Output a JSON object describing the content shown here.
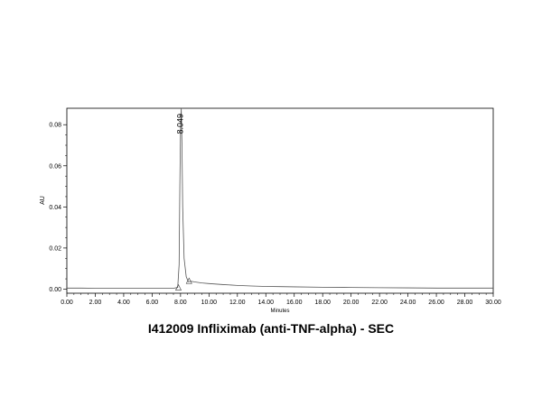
{
  "caption": "I412009 Infliximab (anti-TNF-alpha) - SEC",
  "chart_data": {
    "type": "line",
    "title": "",
    "xlabel": "Minutes",
    "ylabel": "AU",
    "xlim": [
      0,
      30
    ],
    "ylim": [
      -0.002,
      0.088
    ],
    "grid": false,
    "x_ticks": [
      0,
      2,
      4,
      6,
      8,
      10,
      12,
      14,
      16,
      18,
      20,
      22,
      24,
      26,
      28,
      30
    ],
    "x_tick_labels": [
      "0.00",
      "2.00",
      "4.00",
      "6.00",
      "8.00",
      "10.00",
      "12.00",
      "14.00",
      "16.00",
      "18.00",
      "20.00",
      "22.00",
      "24.00",
      "26.00",
      "28.00",
      "30.00"
    ],
    "y_ticks": [
      0,
      0.02,
      0.04,
      0.06,
      0.08
    ],
    "y_tick_labels": [
      "0.00",
      "0.02",
      "0.04",
      "0.06",
      "0.08"
    ],
    "series": [
      {
        "color": "#555555",
        "x": [
          0,
          1,
          2,
          3,
          4,
          5,
          6,
          7,
          7.5,
          7.8,
          7.9,
          7.95,
          8.0,
          8.049,
          8.1,
          8.15,
          8.25,
          8.4,
          8.55,
          8.75,
          9.0,
          9.5,
          10,
          11,
          12,
          13,
          14,
          15,
          16,
          18,
          20,
          22,
          24,
          26,
          28,
          30
        ],
        "y": [
          0.0005,
          0.0005,
          0.0004,
          0.0004,
          0.0004,
          0.0004,
          0.0004,
          0.0004,
          0.0004,
          0.0008,
          0.012,
          0.05,
          0.078,
          0.088,
          0.07,
          0.04,
          0.015,
          0.006,
          0.0035,
          0.0038,
          0.0035,
          0.003,
          0.0027,
          0.0022,
          0.0018,
          0.0015,
          0.0013,
          0.0012,
          0.0011,
          0.0009,
          0.0008,
          0.0007,
          0.0006,
          0.0005,
          0.0005,
          0.0005
        ]
      }
    ],
    "peak_labels": [
      {
        "x": 8.049,
        "y": 0.088,
        "text": "8.049"
      }
    ],
    "integration_markers": [
      {
        "x": 7.85,
        "y": 0.0004
      },
      {
        "x": 8.6,
        "y": 0.0036
      }
    ]
  }
}
